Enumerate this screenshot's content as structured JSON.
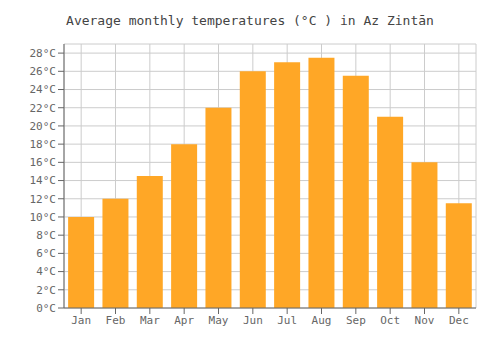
{
  "chart_data": {
    "type": "bar",
    "title": "Average monthly temperatures (°C ) in Az Zintān",
    "categories": [
      "Jan",
      "Feb",
      "Mar",
      "Apr",
      "May",
      "Jun",
      "Jul",
      "Aug",
      "Sep",
      "Oct",
      "Nov",
      "Dec"
    ],
    "values": [
      10.0,
      12.0,
      14.5,
      18.0,
      22.0,
      26.0,
      27.0,
      27.5,
      25.5,
      21.0,
      16.0,
      11.5
    ],
    "color": "#FFA726",
    "ylim": [
      0,
      29
    ],
    "yticks": [
      {
        "value": 0,
        "label": "0°C"
      },
      {
        "value": 2,
        "label": "2°C"
      },
      {
        "value": 4,
        "label": "4°C"
      },
      {
        "value": 6,
        "label": "6°C"
      },
      {
        "value": 8,
        "label": "8°C"
      },
      {
        "value": 10,
        "label": "10°C"
      },
      {
        "value": 12,
        "label": "12°C"
      },
      {
        "value": 14,
        "label": "14°C"
      },
      {
        "value": 16,
        "label": "16°C"
      },
      {
        "value": 18,
        "label": "18°C"
      },
      {
        "value": 20,
        "label": "20°C"
      },
      {
        "value": 22,
        "label": "22°C"
      },
      {
        "value": 24,
        "label": "24°C"
      },
      {
        "value": 26,
        "label": "26°C"
      },
      {
        "value": 28,
        "label": "28°C"
      }
    ],
    "grid": true
  }
}
